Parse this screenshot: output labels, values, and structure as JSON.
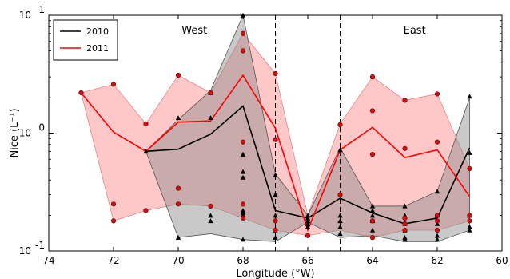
{
  "chart_data": {
    "type": "line",
    "xlabel": "Longitude (°W)",
    "ylabel": "Nice (L⁻¹)",
    "x_ticks": [
      "74",
      "72",
      "70",
      "68",
      "66",
      "64",
      "62",
      "60"
    ],
    "y_ticks": [
      {
        "base": "10",
        "exp": "-1",
        "value": 0.1
      },
      {
        "base": "10",
        "exp": "0",
        "value": 1
      },
      {
        "base": "10",
        "exp": "1",
        "value": 10
      }
    ],
    "xlim": [
      74,
      60
    ],
    "ylim": [
      0.1,
      10
    ],
    "yscale": "log",
    "region_labels": [
      {
        "text": "West",
        "x": 69.5,
        "y": 7.0
      },
      {
        "text": "East",
        "x": 62.7,
        "y": 7.0
      }
    ],
    "dividers": [
      67,
      65
    ],
    "legend": {
      "placement": "top-left",
      "entries": [
        "2010",
        "2011"
      ]
    },
    "colors": {
      "s2010": "#000000",
      "s2011": "#ff0000",
      "band2010": "#888888",
      "band2011": "#ff9a9a",
      "point2011": "#cc1111"
    },
    "series": [
      {
        "name": "2010",
        "x": [
          71,
          70,
          69,
          68,
          67,
          66,
          65,
          64,
          63,
          62,
          61
        ],
        "median": [
          0.7,
          0.73,
          0.98,
          1.7,
          0.22,
          0.19,
          0.28,
          0.21,
          0.17,
          0.19,
          0.75
        ],
        "band_min": [
          0.7,
          0.13,
          0.14,
          0.125,
          0.12,
          0.175,
          0.13,
          0.135,
          0.12,
          0.12,
          0.15
        ],
        "band_max": [
          0.7,
          1.3,
          2.3,
          10.0,
          0.45,
          0.2,
          0.75,
          0.24,
          0.24,
          0.32,
          2.0
        ],
        "points": [
          [
            71,
            0.7
          ],
          [
            70,
            1.35
          ],
          [
            70,
            0.13
          ],
          [
            69,
            1.35
          ],
          [
            69,
            2.2
          ],
          [
            69,
            0.2
          ],
          [
            69,
            0.18
          ],
          [
            68,
            10.0
          ],
          [
            68,
            0.66
          ],
          [
            68,
            0.47
          ],
          [
            68,
            0.42
          ],
          [
            68,
            0.22
          ],
          [
            68,
            0.21
          ],
          [
            68,
            0.2
          ],
          [
            68,
            0.125
          ],
          [
            67,
            0.44
          ],
          [
            67,
            0.3
          ],
          [
            67,
            0.2
          ],
          [
            67,
            0.15
          ],
          [
            67,
            0.13
          ],
          [
            66,
            0.2
          ],
          [
            66,
            0.19
          ],
          [
            66,
            0.18
          ],
          [
            66,
            0.17
          ],
          [
            66,
            0.16
          ],
          [
            65,
            0.72
          ],
          [
            65,
            0.2
          ],
          [
            65,
            0.18
          ],
          [
            65,
            0.16
          ],
          [
            65,
            0.14
          ],
          [
            64,
            0.24
          ],
          [
            64,
            0.22
          ],
          [
            64,
            0.2
          ],
          [
            64,
            0.18
          ],
          [
            64,
            0.15
          ],
          [
            63,
            0.24
          ],
          [
            63,
            0.2
          ],
          [
            63,
            0.17
          ],
          [
            63,
            0.15
          ],
          [
            63,
            0.13
          ],
          [
            63,
            0.125
          ],
          [
            62,
            0.32
          ],
          [
            62,
            0.2
          ],
          [
            62,
            0.17
          ],
          [
            62,
            0.135
          ],
          [
            62,
            0.125
          ],
          [
            61,
            2.05
          ],
          [
            61,
            0.68
          ],
          [
            61,
            0.2
          ],
          [
            61,
            0.16
          ],
          [
            61,
            0.15
          ]
        ]
      },
      {
        "name": "2011",
        "x": [
          73,
          72,
          71,
          70,
          69,
          68,
          67,
          66,
          65,
          64,
          63,
          62,
          61
        ],
        "median": [
          2.2,
          1.02,
          0.7,
          1.24,
          1.27,
          3.1,
          1.1,
          0.15,
          0.72,
          1.12,
          0.62,
          0.72,
          0.29
        ],
        "band_min": [
          2.2,
          0.18,
          0.22,
          0.25,
          0.24,
          0.19,
          0.15,
          0.135,
          0.15,
          0.13,
          0.15,
          0.15,
          0.18
        ],
        "band_max": [
          2.2,
          2.6,
          1.2,
          3.1,
          2.2,
          7.0,
          3.2,
          0.2,
          1.2,
          3.0,
          1.9,
          2.15,
          0.5
        ],
        "points": [
          [
            73,
            2.2
          ],
          [
            72,
            2.6
          ],
          [
            72,
            0.25
          ],
          [
            72,
            0.18
          ],
          [
            71,
            1.2
          ],
          [
            71,
            0.22
          ],
          [
            70,
            3.1
          ],
          [
            70,
            0.34
          ],
          [
            70,
            0.25
          ],
          [
            69,
            2.2
          ],
          [
            69,
            0.24
          ],
          [
            68,
            7.0
          ],
          [
            68,
            5.0
          ],
          [
            68,
            0.84
          ],
          [
            68,
            0.25
          ],
          [
            68,
            0.19
          ],
          [
            67,
            3.2
          ],
          [
            67,
            0.88
          ],
          [
            67,
            0.18
          ],
          [
            67,
            0.15
          ],
          [
            66,
            0.135
          ],
          [
            65,
            1.18
          ],
          [
            65,
            0.3
          ],
          [
            64,
            3.0
          ],
          [
            64,
            1.55
          ],
          [
            64,
            0.66
          ],
          [
            64,
            0.18
          ],
          [
            64,
            0.13
          ],
          [
            63,
            1.9
          ],
          [
            63,
            0.74
          ],
          [
            63,
            0.19
          ],
          [
            63,
            0.17
          ],
          [
            63,
            0.15
          ],
          [
            62,
            2.15
          ],
          [
            62,
            0.84
          ],
          [
            62,
            0.2
          ],
          [
            62,
            0.18
          ],
          [
            62,
            0.15
          ],
          [
            61,
            0.5
          ],
          [
            61,
            0.2
          ],
          [
            61,
            0.18
          ]
        ]
      }
    ]
  }
}
